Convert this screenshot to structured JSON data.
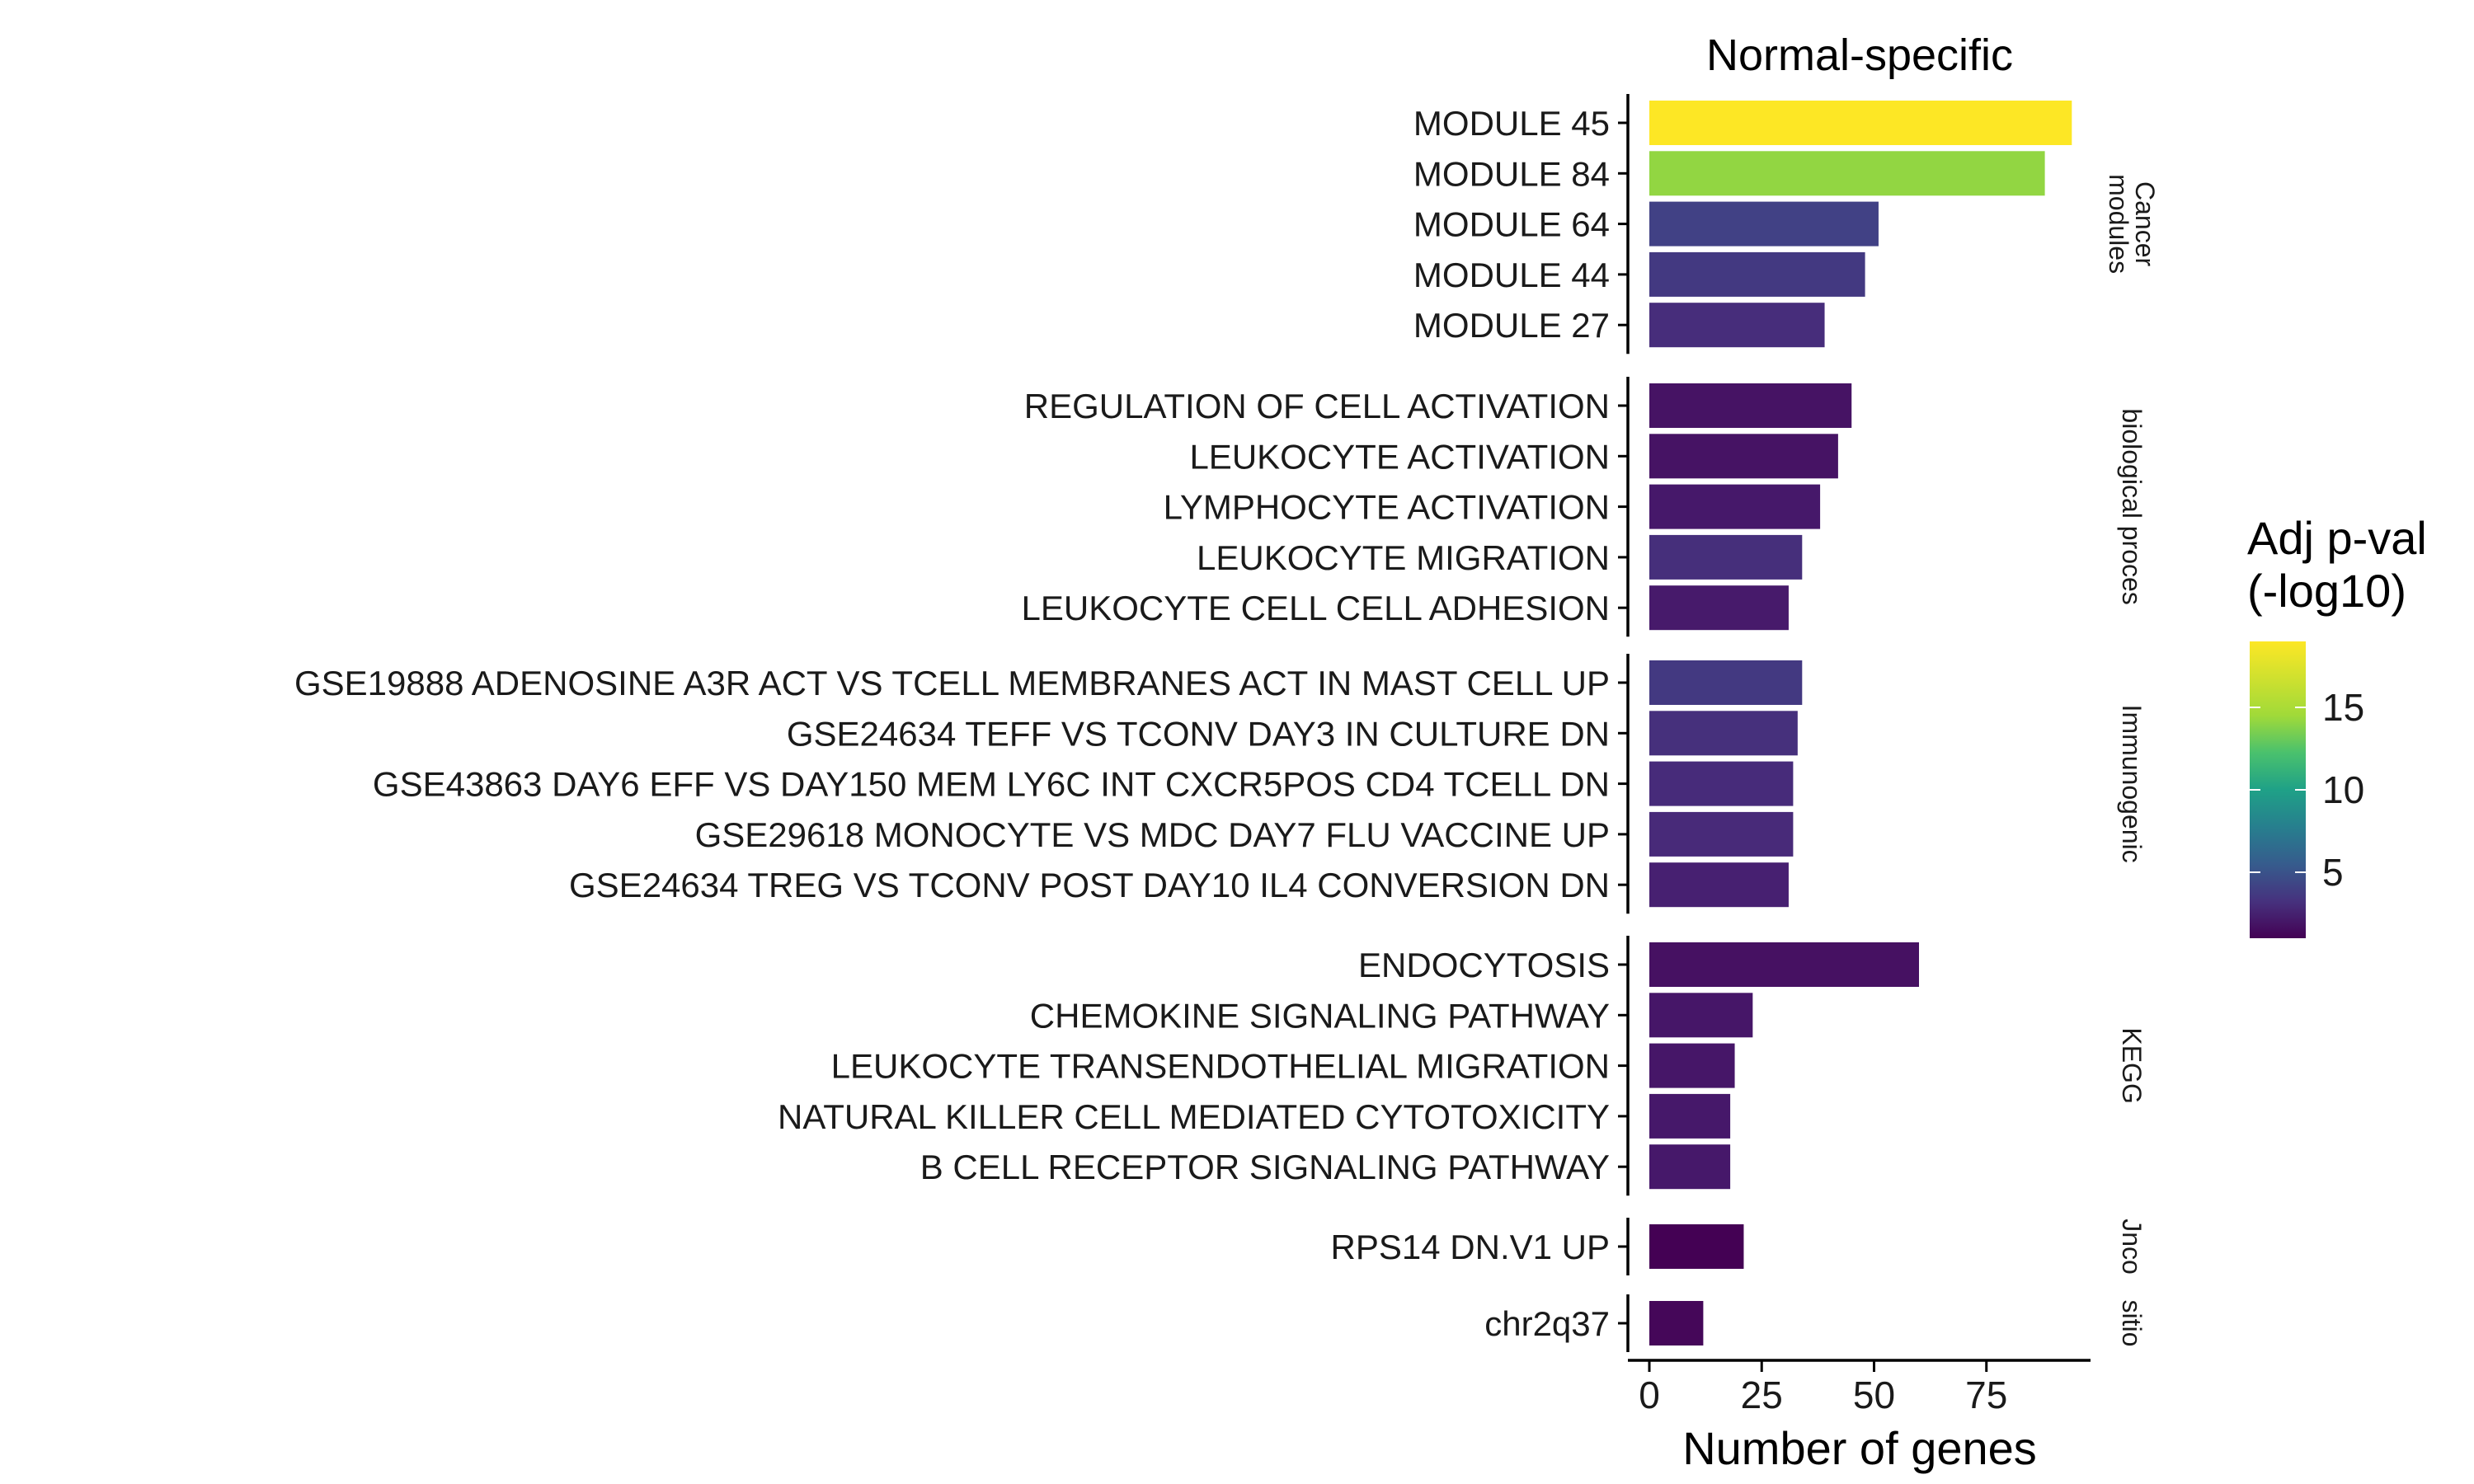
{
  "chart_data": {
    "type": "bar",
    "orientation": "horizontal",
    "title": "Normal-specific",
    "xlabel": "Number of genes",
    "ylabel": "",
    "xlim": [
      0,
      98
    ],
    "xticks": [
      0,
      25,
      50,
      75
    ],
    "grid": false,
    "legend": {
      "title_lines": [
        "Adj p-val",
        "(-log10)"
      ],
      "placement": "right",
      "type": "colorbar",
      "colormap": "viridis",
      "range": [
        1,
        19
      ],
      "ticks": [
        5,
        10,
        15
      ]
    },
    "groups": [
      {
        "label_lines": [
          "Cancer",
          "modules"
        ],
        "bars": [
          {
            "category": "MODULE 45",
            "value": 94,
            "color_value": 19
          },
          {
            "category": "MODULE 84",
            "value": 88,
            "color_value": 16
          },
          {
            "category": "MODULE 64",
            "value": 51,
            "color_value": 4.5
          },
          {
            "category": "MODULE 44",
            "value": 48,
            "color_value": 4
          },
          {
            "category": "MODULE 27",
            "value": 39,
            "color_value": 3.3
          }
        ]
      },
      {
        "label_lines": [
          "biological proces"
        ],
        "bars": [
          {
            "category": "REGULATION OF CELL ACTIVATION",
            "value": 45,
            "color_value": 1.9
          },
          {
            "category": "LEUKOCYTE ACTIVATION",
            "value": 42,
            "color_value": 1.9
          },
          {
            "category": "LYMPHOCYTE ACTIVATION",
            "value": 38,
            "color_value": 2.2
          },
          {
            "category": "LEUKOCYTE MIGRATION",
            "value": 34,
            "color_value": 3.4
          },
          {
            "category": "LEUKOCYTE CELL CELL ADHESION",
            "value": 31,
            "color_value": 2.3
          }
        ]
      },
      {
        "label_lines": [
          "Immunogenic"
        ],
        "bars": [
          {
            "category": "GSE19888 ADENOSINE A3R ACT VS TCELL MEMBRANES ACT IN MAST CELL UP",
            "value": 34,
            "color_value": 4
          },
          {
            "category": "GSE24634 TEFF VS TCONV DAY3 IN CULTURE DN",
            "value": 33,
            "color_value": 3.5
          },
          {
            "category": "GSE43863 DAY6 EFF VS DAY150 MEM LY6C INT CXCR5POS CD4 TCELL DN",
            "value": 32,
            "color_value": 3.2
          },
          {
            "category": "GSE29618 MONOCYTE VS MDC DAY7 FLU VACCINE UP",
            "value": 32,
            "color_value": 3.1
          },
          {
            "category": "GSE24634 TREG VS TCONV POST DAY10 IL4 CONVERSION DN",
            "value": 31,
            "color_value": 2.6
          }
        ]
      },
      {
        "label_lines": [
          "KEGG"
        ],
        "bars": [
          {
            "category": "ENDOCYTOSIS",
            "value": 60,
            "color_value": 1.8
          },
          {
            "category": "CHEMOKINE SIGNALING PATHWAY",
            "value": 23,
            "color_value": 2.1
          },
          {
            "category": "LEUKOCYTE TRANSENDOTHELIAL MIGRATION",
            "value": 19,
            "color_value": 2.1
          },
          {
            "category": "NATURAL KILLER CELL MEDIATED CYTOTOXICITY",
            "value": 18,
            "color_value": 2.2
          },
          {
            "category": "B CELL RECEPTOR SIGNALING PATHWAY",
            "value": 18,
            "color_value": 2.2
          }
        ]
      },
      {
        "label_lines": [
          "Jnco"
        ],
        "bars": [
          {
            "category": "RPS14 DN.V1 UP",
            "value": 21,
            "color_value": 1.0
          }
        ]
      },
      {
        "label_lines": [
          "sitio"
        ],
        "bars": [
          {
            "category": "chr2q37",
            "value": 12,
            "color_value": 1.3
          }
        ]
      }
    ]
  }
}
